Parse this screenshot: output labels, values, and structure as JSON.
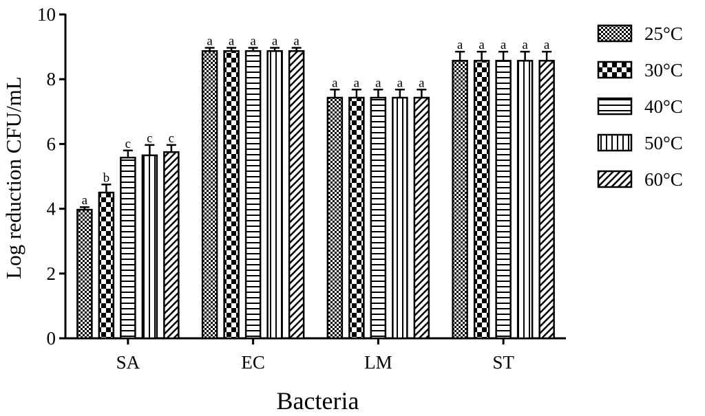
{
  "chart_data": {
    "type": "bar",
    "title": "",
    "xlabel": "Bacteria",
    "ylabel": "Log reduction CFU/mL",
    "ylim": [
      0,
      10
    ],
    "yticks": [
      "0",
      "2",
      "4",
      "6",
      "8",
      "10"
    ],
    "categories": [
      "SA",
      "EC",
      "LM",
      "ST"
    ],
    "legend_position": "right",
    "series": [
      {
        "name": "25°C",
        "pattern": "checker-fine",
        "values": [
          3.97,
          8.87,
          7.43,
          8.57
        ],
        "errors": [
          0.08,
          0.1,
          0.25,
          0.28
        ],
        "labels": [
          "a",
          "a",
          "a",
          "a"
        ]
      },
      {
        "name": "30°C",
        "pattern": "checker-coarse",
        "values": [
          4.5,
          8.87,
          7.43,
          8.57
        ],
        "errors": [
          0.25,
          0.1,
          0.25,
          0.28
        ],
        "labels": [
          "b",
          "a",
          "a",
          "a"
        ]
      },
      {
        "name": "40°C",
        "pattern": "horizontal-lines",
        "values": [
          5.58,
          8.87,
          7.43,
          8.57
        ],
        "errors": [
          0.22,
          0.1,
          0.25,
          0.28
        ],
        "labels": [
          "c",
          "a",
          "a",
          "a"
        ]
      },
      {
        "name": "50°C",
        "pattern": "vertical-lines",
        "values": [
          5.65,
          8.87,
          7.43,
          8.57
        ],
        "errors": [
          0.32,
          0.1,
          0.25,
          0.28
        ],
        "labels": [
          "c",
          "a",
          "a",
          "a"
        ]
      },
      {
        "name": "60°C",
        "pattern": "diagonal-lines",
        "values": [
          5.75,
          8.87,
          7.43,
          8.57
        ],
        "errors": [
          0.22,
          0.1,
          0.25,
          0.28
        ],
        "labels": [
          "c",
          "a",
          "a",
          "a"
        ]
      }
    ],
    "colors": {
      "ink": "#000000",
      "background": "#ffffff"
    },
    "grid": false
  }
}
